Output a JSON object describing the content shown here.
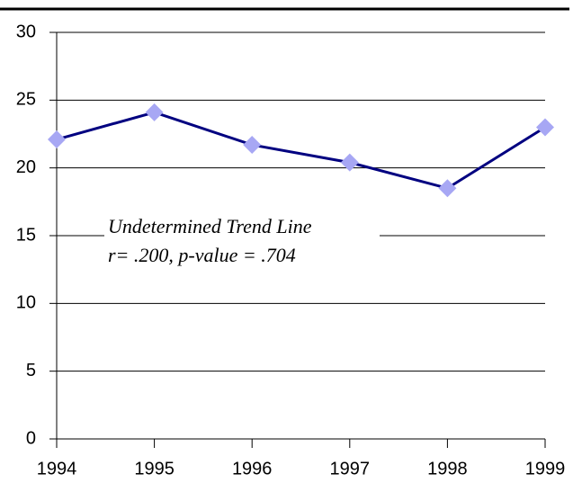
{
  "chart_data": {
    "type": "line",
    "x": [
      1994,
      1995,
      1996,
      1997,
      1998,
      1999
    ],
    "series": [
      {
        "color": "#000080",
        "marker_color": "#a7a7f4",
        "values": [
          22.1,
          24.1,
          21.7,
          20.4,
          18.5,
          23.0
        ]
      }
    ],
    "xlim": [
      1994,
      1999
    ],
    "xticks": [
      1994,
      1995,
      1996,
      1997,
      1998,
      1999
    ],
    "ylim": [
      0,
      30
    ],
    "yticks": [
      0,
      5,
      10,
      15,
      20,
      25,
      30
    ],
    "grid": true,
    "annotation": [
      "Undetermined Trend Line",
      "r= .200, p-value = .704"
    ]
  }
}
